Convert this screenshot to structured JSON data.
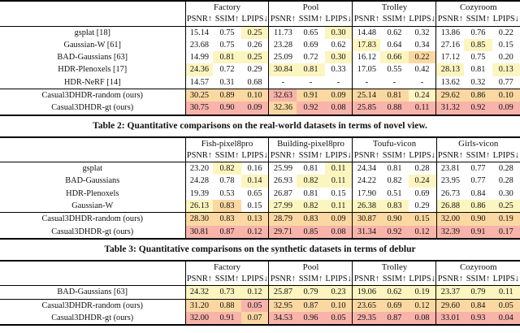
{
  "metrics": [
    "PSNR↑",
    "SSIM↑",
    "LPIPS↓"
  ],
  "highlight_colors": {
    "1": "#f8b3ab",
    "2": "#fbd8a2",
    "3": "#fdf5c0"
  },
  "highlight_legend": {
    "1": "best",
    "2": "second-best",
    "3": "third-best"
  },
  "tables": [
    {
      "caption": "Table 2: Quantitative comparisons on the real-world datasets in terms of novel view.",
      "groups": [
        "Factory",
        "Pool",
        "Trolley",
        "Cozyroom"
      ],
      "rows": [
        {
          "label": "gsplat [18]",
          "cells": [
            [
              "15.14",
              ""
            ],
            [
              "0.75",
              ""
            ],
            [
              "0.25",
              "3"
            ],
            [
              "11.73",
              ""
            ],
            [
              "0.65",
              ""
            ],
            [
              "0.30",
              "3"
            ],
            [
              "14.48",
              ""
            ],
            [
              "0.62",
              ""
            ],
            [
              "0.32",
              ""
            ],
            [
              "13.86",
              ""
            ],
            [
              "0.76",
              ""
            ],
            [
              "0.22",
              ""
            ]
          ]
        },
        {
          "label": "Gaussian-W [61]",
          "cells": [
            [
              "23.68",
              ""
            ],
            [
              "0.75",
              ""
            ],
            [
              "0.26",
              ""
            ],
            [
              "23.28",
              ""
            ],
            [
              "0.69",
              ""
            ],
            [
              "0.62",
              ""
            ],
            [
              "17.83",
              "3"
            ],
            [
              "0.64",
              ""
            ],
            [
              "0.34",
              ""
            ],
            [
              "27.16",
              ""
            ],
            [
              "0.85",
              "3"
            ],
            [
              "0.15",
              ""
            ]
          ]
        },
        {
          "label": "BAD-Gaussians [63]",
          "cells": [
            [
              "14.99",
              ""
            ],
            [
              "0.81",
              "3"
            ],
            [
              "0.25",
              "3"
            ],
            [
              "25.09",
              ""
            ],
            [
              "0.72",
              ""
            ],
            [
              "0.30",
              "3"
            ],
            [
              "16.12",
              ""
            ],
            [
              "0.66",
              "3"
            ],
            [
              "0.22",
              "2"
            ],
            [
              "17.12",
              ""
            ],
            [
              "0.75",
              ""
            ],
            [
              "0.20",
              ""
            ]
          ]
        },
        {
          "label": "HDR-Plenoxels [17]",
          "cells": [
            [
              "24.36",
              "3"
            ],
            [
              "0.72",
              ""
            ],
            [
              "0.29",
              ""
            ],
            [
              "30.84",
              "3"
            ],
            [
              "0.81",
              "3"
            ],
            [
              "0.33",
              ""
            ],
            [
              "17.05",
              ""
            ],
            [
              "0.55",
              ""
            ],
            [
              "0.42",
              ""
            ],
            [
              "28.13",
              "3"
            ],
            [
              "0.81",
              ""
            ],
            [
              "0.13",
              "3"
            ]
          ]
        },
        {
          "label": "HDR-NeRF [14]",
          "cells": [
            [
              "14.57",
              ""
            ],
            [
              "0.31",
              ""
            ],
            [
              "0.68",
              ""
            ],
            [
              "-",
              ""
            ],
            [
              "-",
              ""
            ],
            [
              "-",
              ""
            ],
            [
              "-",
              ""
            ],
            [
              "-",
              ""
            ],
            [
              "-",
              ""
            ],
            [
              "13.62",
              ""
            ],
            [
              "0.32",
              ""
            ],
            [
              "0.77",
              ""
            ]
          ]
        }
      ],
      "ours_rows": [
        {
          "label": "Casual3DHDR-random (ours)",
          "cells": [
            [
              "30.25",
              "2"
            ],
            [
              "0.89",
              "2"
            ],
            [
              "0.10",
              "2"
            ],
            [
              "32.63",
              "1"
            ],
            [
              "0.91",
              "2"
            ],
            [
              "0.09",
              "2"
            ],
            [
              "25.14",
              "2"
            ],
            [
              "0.81",
              "2"
            ],
            [
              "0.24",
              "3"
            ],
            [
              "29.62",
              "2"
            ],
            [
              "0.86",
              "2"
            ],
            [
              "0.10",
              "2"
            ]
          ]
        },
        {
          "label": "Casual3DHDR-gt (ours)",
          "cells": [
            [
              "30.75",
              "1"
            ],
            [
              "0.90",
              "1"
            ],
            [
              "0.09",
              "1"
            ],
            [
              "32.36",
              "2"
            ],
            [
              "0.92",
              "1"
            ],
            [
              "0.08",
              "1"
            ],
            [
              "25.85",
              "1"
            ],
            [
              "0.88",
              "1"
            ],
            [
              "0.11",
              "1"
            ],
            [
              "31.32",
              "1"
            ],
            [
              "0.92",
              "1"
            ],
            [
              "0.09",
              "1"
            ]
          ]
        }
      ]
    },
    {
      "caption": "Table 3: Quantitative comparisons on the synthetic datasets in terms of deblur",
      "groups": [
        "Fish-pixel8pro",
        "Building-pixel8pro",
        "Toufu-vicon",
        "Girls-vicon"
      ],
      "rows": [
        {
          "label": "gsplat",
          "cells": [
            [
              "23.20",
              ""
            ],
            [
              "0.82",
              "3"
            ],
            [
              "0.16",
              ""
            ],
            [
              "25.99",
              ""
            ],
            [
              "0.81",
              ""
            ],
            [
              "0.11",
              "3"
            ],
            [
              "24.34",
              ""
            ],
            [
              "0.81",
              ""
            ],
            [
              "0.28",
              ""
            ],
            [
              "23.81",
              ""
            ],
            [
              "0.77",
              ""
            ],
            [
              "0.28",
              ""
            ]
          ]
        },
        {
          "label": "BAD-Gaussians",
          "cells": [
            [
              "24.28",
              ""
            ],
            [
              "0.78",
              ""
            ],
            [
              "0.14",
              "3"
            ],
            [
              "26.93",
              ""
            ],
            [
              "0.82",
              "3"
            ],
            [
              "0.11",
              "3"
            ],
            [
              "24.22",
              ""
            ],
            [
              "0.82",
              ""
            ],
            [
              "0.24",
              "3"
            ],
            [
              "23.95",
              ""
            ],
            [
              "0.77",
              ""
            ],
            [
              "0.28",
              ""
            ]
          ]
        },
        {
          "label": "HDR-Plenoxels",
          "cells": [
            [
              "19.39",
              ""
            ],
            [
              "0.53",
              ""
            ],
            [
              "0.65",
              ""
            ],
            [
              "26.87",
              ""
            ],
            [
              "0.81",
              ""
            ],
            [
              "0.15",
              ""
            ],
            [
              "17.90",
              ""
            ],
            [
              "0.51",
              ""
            ],
            [
              "0.69",
              ""
            ],
            [
              "26.73",
              ""
            ],
            [
              "0.84",
              ""
            ],
            [
              "0.30",
              ""
            ]
          ]
        },
        {
          "label": "Gaussian-W",
          "cells": [
            [
              "26.13",
              "3"
            ],
            [
              "0.83",
              "2"
            ],
            [
              "0.15",
              ""
            ],
            [
              "27.99",
              "3"
            ],
            [
              "0.82",
              "3"
            ],
            [
              "0.11",
              "3"
            ],
            [
              "26.38",
              "3"
            ],
            [
              "0.83",
              "3"
            ],
            [
              "0.29",
              ""
            ],
            [
              "26.88",
              "3"
            ],
            [
              "0.86",
              "3"
            ],
            [
              "0.25",
              "3"
            ]
          ]
        }
      ],
      "ours_rows": [
        {
          "label": "Casual3DHDR-random (ours)",
          "cells": [
            [
              "28.30",
              "2"
            ],
            [
              "0.83",
              "2"
            ],
            [
              "0.13",
              "2"
            ],
            [
              "28.79",
              "2"
            ],
            [
              "0.83",
              "2"
            ],
            [
              "0.09",
              "2"
            ],
            [
              "30.87",
              "2"
            ],
            [
              "0.90",
              "2"
            ],
            [
              "0.15",
              "2"
            ],
            [
              "32.00",
              "2"
            ],
            [
              "0.90",
              "2"
            ],
            [
              "0.19",
              "2"
            ]
          ]
        },
        {
          "label": "Casual3DHDR-gt (ours)",
          "cells": [
            [
              "30.81",
              "1"
            ],
            [
              "0.87",
              "1"
            ],
            [
              "0.12",
              "1"
            ],
            [
              "29.71",
              "1"
            ],
            [
              "0.85",
              "1"
            ],
            [
              "0.08",
              "1"
            ],
            [
              "31.34",
              "1"
            ],
            [
              "0.92",
              "1"
            ],
            [
              "0.12",
              "1"
            ],
            [
              "32.39",
              "1"
            ],
            [
              "0.91",
              "1"
            ],
            [
              "0.17",
              "1"
            ]
          ]
        }
      ]
    },
    {
      "caption": "",
      "groups": [
        "Factory",
        "Pool",
        "Trolley",
        "Cozyroom"
      ],
      "rows": [
        {
          "label": "BAD-Gaussians [63]",
          "cells": [
            [
              "24.32",
              "3"
            ],
            [
              "0.73",
              "3"
            ],
            [
              "0.12",
              "3"
            ],
            [
              "25.87",
              "3"
            ],
            [
              "0.79",
              "3"
            ],
            [
              "0.23",
              "3"
            ],
            [
              "19.06",
              "3"
            ],
            [
              "0.62",
              "3"
            ],
            [
              "0.19",
              "3"
            ],
            [
              "23.37",
              "3"
            ],
            [
              "0.79",
              "3"
            ],
            [
              "0.11",
              "3"
            ]
          ]
        }
      ],
      "ours_rows": [
        {
          "label": "Casual3DHDR-random (ours)",
          "cells": [
            [
              "31.20",
              "2"
            ],
            [
              "0.88",
              "2"
            ],
            [
              "0.05",
              "1"
            ],
            [
              "32.95",
              "2"
            ],
            [
              "0.87",
              "2"
            ],
            [
              "0.10",
              "2"
            ],
            [
              "23.65",
              "2"
            ],
            [
              "0.69",
              "2"
            ],
            [
              "0.12",
              "2"
            ],
            [
              "29.60",
              "2"
            ],
            [
              "0.84",
              "2"
            ],
            [
              "0.05",
              "2"
            ]
          ]
        },
        {
          "label": "Casual3DHDR-gt (ours)",
          "cells": [
            [
              "32.00",
              "1"
            ],
            [
              "0.91",
              "1"
            ],
            [
              "0.07",
              "2"
            ],
            [
              "34.53",
              "1"
            ],
            [
              "0.96",
              "1"
            ],
            [
              "0.05",
              "1"
            ],
            [
              "29.35",
              "1"
            ],
            [
              "0.87",
              "1"
            ],
            [
              "0.08",
              "1"
            ],
            [
              "33.01",
              "1"
            ],
            [
              "0.93",
              "1"
            ],
            [
              "0.04",
              "1"
            ]
          ]
        }
      ]
    }
  ]
}
